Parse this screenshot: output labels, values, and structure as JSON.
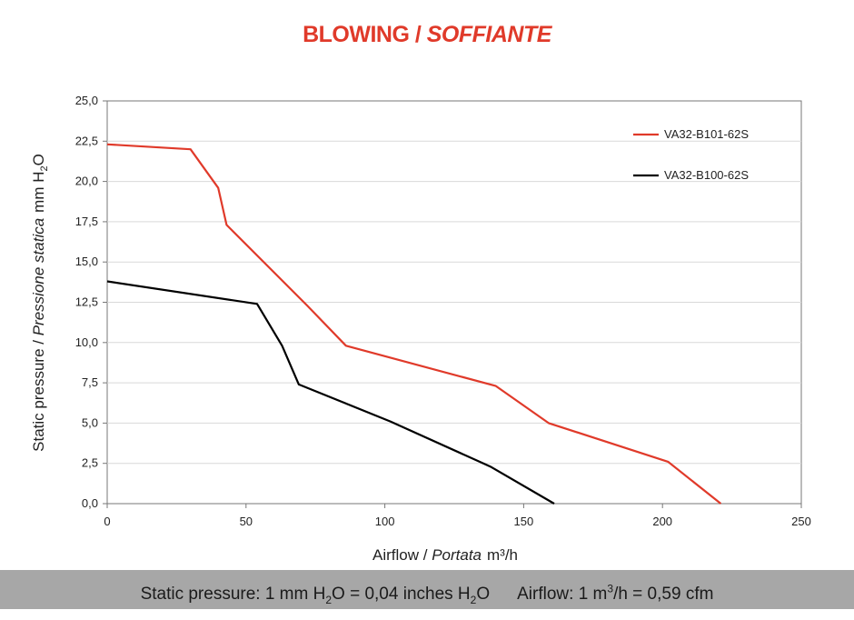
{
  "title": {
    "main": "BLOWING /",
    "italic": "SOFFIANTE"
  },
  "footer": {
    "pressure": {
      "pre": "Static pressure: 1 mm H",
      "sub1": "2",
      "mid": "O = 0,04 inches H",
      "sub2": "2",
      "post": "O"
    },
    "airflow": {
      "pre": "Airflow: 1 m",
      "sup": "3",
      "post": "/h = 0,59 cfm"
    }
  },
  "axes": {
    "x_label": {
      "plain": "Airflow",
      "sep": " / ",
      "italic": "Portata",
      "unit": "m³/h"
    },
    "y_label": {
      "plain": "Static pressure",
      "sep": " / ",
      "italic": "Pressione statica",
      "unit_pre": "mm  H",
      "unit_sub": "2",
      "unit_post": "O"
    }
  },
  "colors": {
    "accent": "#e03a2a",
    "series_red": "#e03a2a",
    "series_black": "#000000",
    "grid": "#d9d9d9",
    "footer_bg": "#a7a7a7"
  },
  "chart_data": {
    "type": "line",
    "xlim": [
      0,
      250
    ],
    "ylim": [
      0,
      25
    ],
    "x_ticks": [
      0,
      50,
      100,
      150,
      200,
      250
    ],
    "y_ticks": [
      0,
      2.5,
      5,
      7.5,
      10,
      12.5,
      15,
      17.5,
      20,
      22.5,
      25
    ],
    "x_tick_labels": [
      "0",
      "50",
      "100",
      "150",
      "200",
      "250"
    ],
    "y_tick_labels": [
      "0,0",
      "2,5",
      "5,0",
      "7,5",
      "10,0",
      "12,5",
      "15,0",
      "17,5",
      "20,0",
      "22,5",
      "25,0"
    ],
    "grid": true,
    "legend_position": "top-right",
    "series": [
      {
        "name": "VA32-B101-62S",
        "color": "#e03a2a",
        "x": [
          0,
          30,
          40,
          43,
          72,
          86,
          140,
          159,
          202,
          221
        ],
        "y": [
          22.3,
          22,
          19.6,
          17.3,
          12.3,
          9.8,
          7.3,
          5,
          2.6,
          0
        ]
      },
      {
        "name": "VA32-B100-62S",
        "color": "#000000",
        "x": [
          0,
          54,
          63,
          69,
          102,
          138,
          161
        ],
        "y": [
          13.8,
          12.4,
          9.8,
          7.4,
          5.1,
          2.3,
          0
        ]
      }
    ]
  }
}
